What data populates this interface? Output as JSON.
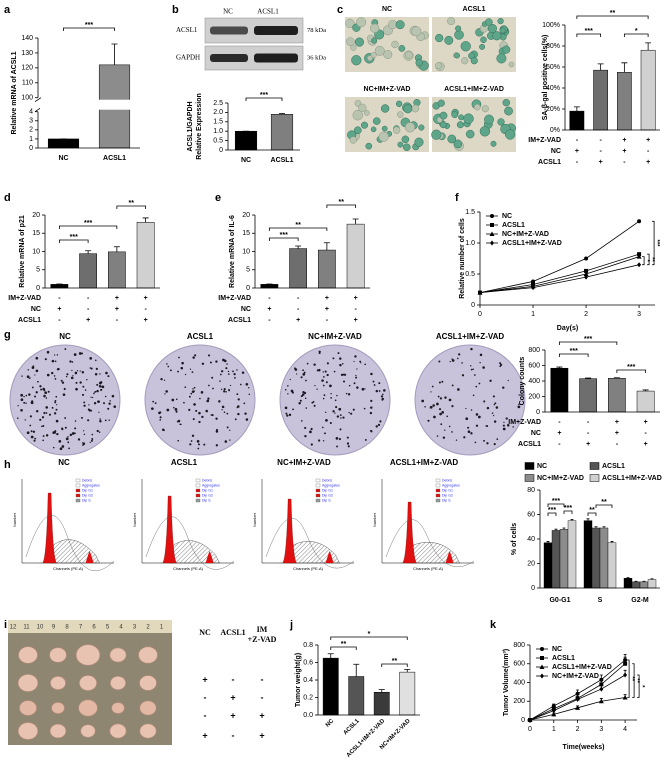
{
  "figure": {
    "panel_labels": [
      "a",
      "b",
      "c",
      "d",
      "e",
      "f",
      "g",
      "h",
      "i",
      "j",
      "k"
    ],
    "blot": {
      "columns": [
        "NC",
        "ACSL1"
      ],
      "rows": [
        "ACSL1",
        "GAPDH"
      ],
      "sizes": [
        "78 kDa",
        "36 kDa"
      ]
    },
    "micrographs": [
      "NC",
      "ACSL1",
      "NC+IM+Z-VAD",
      "ACSL1+IM+Z-VAD"
    ],
    "colony_dishes": [
      "NC",
      "ACSL1",
      "NC+IM+Z-VAD",
      "ACSL1+IM+Z-VAD"
    ],
    "flow_histograms": [
      "NC",
      "ACSL1",
      "NC+IM+Z-VAD",
      "ACSL1+IM+Z-VAD"
    ],
    "flow_axes": {
      "x": "Channels (PE-A)",
      "y": "Number"
    },
    "flow_legend": [
      "Debris",
      "Aggregates",
      "Dip G1",
      "Dip G2",
      "Dip S"
    ],
    "tumor_photo": {
      "ruler": [
        "12",
        "11",
        "10",
        "9",
        "8",
        "7",
        "6",
        "5",
        "4",
        "3",
        "2",
        "1"
      ]
    },
    "tumor_table": {
      "headers": [
        "NC",
        "ACSL1",
        "IM",
        "+Z-VAD"
      ],
      "rows": [
        [
          "+",
          "-",
          "-"
        ],
        [
          "-",
          "+",
          "-"
        ],
        [
          "-",
          "+",
          "+"
        ],
        [
          "+",
          "-",
          "+"
        ]
      ]
    }
  },
  "chart_data": [
    {
      "type": "bar",
      "ylabel": "Relative mRNA of ACSL1",
      "categories": [
        "NC",
        "ACSL1"
      ],
      "values": [
        1,
        122
      ],
      "errors": [
        0,
        14
      ],
      "colors": [
        "#000000",
        "#8c8c8c"
      ],
      "ylim": [
        0,
        140
      ],
      "ybreak": [
        4,
        100
      ],
      "yticks": [
        0,
        1,
        2,
        3,
        4,
        100,
        110,
        120,
        130,
        140
      ],
      "annotations": [
        "***"
      ]
    },
    {
      "type": "bar",
      "ylabel": [
        "ACSL1/GAPDH",
        "Relative Expression"
      ],
      "categories": [
        "NC",
        "ACSL1"
      ],
      "values": [
        1,
        1.9
      ],
      "errors": [
        0,
        0.04
      ],
      "colors": [
        "#000000",
        "#7f7f7f"
      ],
      "ylim": [
        0,
        2.5
      ],
      "yticks": [
        0,
        0.5,
        {
          "value": 1,
          "label": "1.0"
        },
        1.5,
        {
          "value": 2,
          "label": "2.0"
        },
        2.5
      ],
      "annotations": [
        "***"
      ]
    },
    {
      "type": "bar",
      "ylabel": "SA-β-gal positive cells(%)",
      "values": [
        18,
        57,
        55,
        76
      ],
      "errors": [
        4,
        6,
        9,
        7
      ],
      "colors": [
        "#000000",
        "#6e6e6e",
        "#808080",
        "#d0d0d0"
      ],
      "ylim": [
        0,
        100
      ],
      "yticks": [
        {
          "value": 0,
          "label": "0%"
        },
        {
          "value": 20,
          "label": "20%"
        },
        {
          "value": 40,
          "label": "40%"
        },
        {
          "value": 60,
          "label": "60%"
        },
        {
          "value": 80,
          "label": "80%"
        },
        {
          "value": 100,
          "label": "100%"
        }
      ],
      "conditions": {
        "labels": [
          "IM+Z-VAD",
          "NC",
          "ACSL1"
        ],
        "marks": [
          [
            "-",
            "-",
            "+",
            "+"
          ],
          [
            "+",
            "-",
            "+",
            "-"
          ],
          [
            "-",
            "+",
            "-",
            "+"
          ]
        ]
      },
      "annotations": [
        "**",
        "***",
        "*"
      ]
    },
    {
      "type": "bar",
      "ylabel": "Relative mRNA of p21",
      "values": [
        1,
        9.4,
        9.9,
        18
      ],
      "errors": [
        0.1,
        0.8,
        1.4,
        1.2
      ],
      "colors": [
        "#000000",
        "#6e6e6e",
        "#808080",
        "#d0d0d0"
      ],
      "ylim": [
        0,
        20
      ],
      "yticks": [
        0,
        5,
        10,
        15,
        20
      ],
      "conditions": {
        "labels": [
          "IM+Z-VAD",
          "NC",
          "ACSL1"
        ],
        "marks": [
          [
            "-",
            "-",
            "+",
            "+"
          ],
          [
            "+",
            "-",
            "+",
            "-"
          ],
          [
            "-",
            "+",
            "-",
            "+"
          ]
        ]
      },
      "annotations": [
        "**",
        "***",
        "***"
      ]
    },
    {
      "type": "bar",
      "ylabel": "Relative mRNA of IL-6",
      "values": [
        1,
        10.8,
        10.4,
        17.5
      ],
      "errors": [
        0.1,
        0.7,
        2,
        1.4
      ],
      "colors": [
        "#000000",
        "#6e6e6e",
        "#808080",
        "#d0d0d0"
      ],
      "ylim": [
        0,
        20
      ],
      "yticks": [
        0,
        5,
        10,
        15,
        20
      ],
      "conditions": {
        "labels": [
          "IM+Z-VAD",
          "NC",
          "ACSL1"
        ],
        "marks": [
          [
            "-",
            "-",
            "+",
            "+"
          ],
          [
            "+",
            "-",
            "+",
            "-"
          ],
          [
            "-",
            "+",
            "-",
            "+"
          ]
        ]
      },
      "annotations": [
        "**",
        "**",
        "***"
      ]
    },
    {
      "type": "line",
      "ylabel": "Relative number of cells",
      "xlabel": "Day(s)",
      "x": [
        0,
        1,
        2,
        3
      ],
      "xlim": [
        0,
        3.3
      ],
      "xticks": [
        0,
        1,
        2,
        3
      ],
      "ylim": [
        0,
        1.5
      ],
      "yticks": [
        0,
        0.5,
        {
          "value": 1,
          "label": "1.0"
        },
        1.5
      ],
      "series": [
        {
          "name": "NC",
          "color": "#000000",
          "marker": "circle",
          "values": [
            0.2,
            0.38,
            0.75,
            1.35
          ]
        },
        {
          "name": "ACSL1",
          "color": "#000000",
          "marker": "square",
          "values": [
            0.2,
            0.33,
            0.55,
            0.82
          ]
        },
        {
          "name": "NC+IM+Z-VAD",
          "color": "#000000",
          "marker": "triangle",
          "values": [
            0.2,
            0.3,
            0.5,
            0.78
          ]
        },
        {
          "name": "ACSL1+IM+Z-VAD",
          "color": "#000000",
          "marker": "diamond",
          "values": [
            0.2,
            0.28,
            0.45,
            0.65
          ]
        }
      ],
      "annotations": [
        "*",
        "**",
        "***"
      ]
    },
    {
      "type": "bar",
      "ylabel": "Colony counts",
      "values": [
        565,
        430,
        435,
        270
      ],
      "errors": [
        15,
        8,
        6,
        15
      ],
      "colors": [
        "#000000",
        "#6e6e6e",
        "#808080",
        "#d0d0d0"
      ],
      "ylim": [
        0,
        800
      ],
      "yticks": [
        0,
        200,
        400,
        600,
        800
      ],
      "conditions": {
        "labels": [
          "IM+Z-VAD",
          "NC",
          "ACSL1"
        ],
        "marks": [
          [
            "-",
            "-",
            "+",
            "+"
          ],
          [
            "+",
            "-",
            "+",
            "-"
          ],
          [
            "-",
            "+",
            "-",
            "+"
          ]
        ]
      },
      "annotations": [
        "***",
        "***",
        "***"
      ]
    },
    {
      "type": "grouped_bar",
      "ylabel": "% of cells",
      "categories": [
        "G0-G1",
        "S",
        "G2-M"
      ],
      "ylim": [
        0,
        80
      ],
      "yticks": [
        0,
        20,
        40,
        60,
        80
      ],
      "series": [
        {
          "name": "NC",
          "color": "#000000",
          "values": [
            37,
            55,
            8
          ],
          "errors": [
            1,
            1.5,
            0.5
          ]
        },
        {
          "name": "ACSL1",
          "color": "#555555",
          "values": [
            47,
            49,
            5
          ],
          "errors": [
            1,
            1,
            0.5
          ]
        },
        {
          "name": "NC+IM+Z-VAD",
          "color": "#8c8c8c",
          "values": [
            48,
            49,
            5
          ],
          "errors": [
            1,
            1,
            0.5
          ]
        },
        {
          "name": "ACSL1+IM+Z-VAD",
          "color": "#d0d0d0",
          "values": [
            55,
            37,
            7
          ],
          "errors": [
            1,
            1,
            0.5
          ]
        }
      ],
      "annotations": [
        "***",
        "***",
        "***",
        "**",
        "**"
      ]
    },
    {
      "type": "bar",
      "ylabel": "Tumor weight(g)",
      "categories": [
        "NC",
        "ACSL1",
        "ACSL1+IM+Z-VAD",
        "NC+IM+Z-VAD"
      ],
      "values": [
        0.65,
        0.44,
        0.26,
        0.49
      ],
      "errors": [
        0.05,
        0.14,
        0.03,
        0.03
      ],
      "colors": [
        "#000000",
        "#555555",
        "#3a3a3a",
        "#e0e0e0"
      ],
      "ylim": [
        0,
        0.8
      ],
      "yticks": [
        {
          "value": 0,
          "label": "0.0"
        },
        0.2,
        0.4,
        0.6,
        0.8
      ],
      "annotations": [
        "*",
        "**",
        "**"
      ]
    },
    {
      "type": "line",
      "ylabel": "Tumor Volume(mm³)",
      "xlabel": "Time(weeks)",
      "x": [
        0,
        1,
        2,
        3,
        4
      ],
      "xlim": [
        0,
        4.5
      ],
      "xticks": [
        0,
        1,
        2,
        3,
        4
      ],
      "ylim": [
        0,
        800
      ],
      "yticks": [
        0,
        200,
        400,
        600,
        800
      ],
      "series": [
        {
          "name": "NC",
          "color": "#000000",
          "marker": "circle",
          "values": [
            0,
            150,
            280,
            430,
            640
          ],
          "errors": [
            0,
            20,
            40,
            50,
            60
          ]
        },
        {
          "name": "ACSL1",
          "color": "#000000",
          "marker": "square",
          "values": [
            0,
            120,
            230,
            380,
            600
          ],
          "errors": [
            0,
            20,
            40,
            60,
            70
          ]
        },
        {
          "name": "ACSL1+IM+Z-VAD",
          "color": "#000000",
          "marker": "triangle",
          "values": [
            0,
            60,
            130,
            200,
            240
          ],
          "errors": [
            0,
            15,
            20,
            30,
            30
          ]
        },
        {
          "name": "NC+IM+Z-VAD",
          "color": "#000000",
          "marker": "diamond",
          "values": [
            0,
            100,
            220,
            330,
            480
          ],
          "errors": [
            0,
            20,
            30,
            40,
            50
          ]
        }
      ],
      "annotations": [
        "**",
        "**",
        "*"
      ]
    }
  ]
}
